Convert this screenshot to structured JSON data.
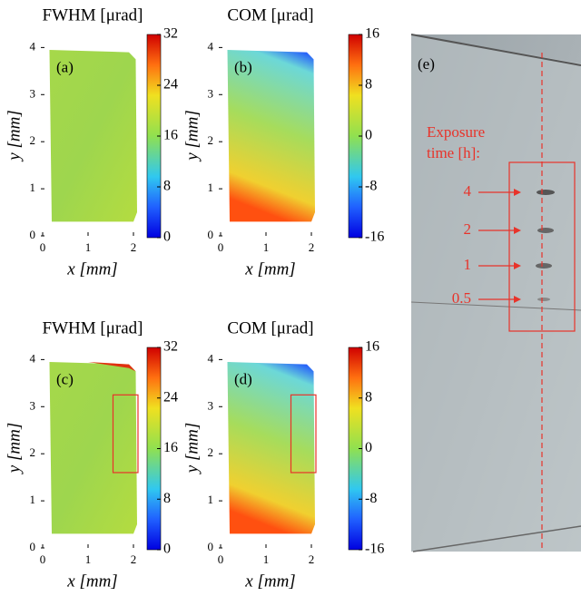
{
  "panels": [
    {
      "label": "(a)",
      "title": "FWHM [μrad]",
      "x_label": "x [mm]",
      "y_label": "y [mm]",
      "xlim": [
        0,
        2.2
      ],
      "ylim": [
        0,
        4.2
      ],
      "xticks": [
        0,
        1,
        2
      ],
      "yticks": [
        0,
        1,
        2,
        3,
        4
      ],
      "colorbar": {
        "lim": [
          0,
          32
        ],
        "ticks": [
          0,
          8,
          16,
          24,
          32
        ]
      },
      "map": "fwhm"
    },
    {
      "label": "(b)",
      "title": "COM [μrad]",
      "x_label": "x [mm]",
      "y_label": "y [mm]",
      "xlim": [
        0,
        2.2
      ],
      "ylim": [
        0,
        4.2
      ],
      "xticks": [
        0,
        1,
        2
      ],
      "yticks": [
        0,
        1,
        2,
        3,
        4
      ],
      "colorbar": {
        "lim": [
          -16,
          16
        ],
        "ticks": [
          -16,
          -8,
          0,
          8,
          16
        ]
      },
      "map": "com"
    },
    {
      "label": "(c)",
      "title": "FWHM [μrad]",
      "x_label": "x [mm]",
      "y_label": "y [mm]",
      "xlim": [
        0,
        2.2
      ],
      "ylim": [
        0,
        4.2
      ],
      "xticks": [
        0,
        1,
        2
      ],
      "yticks": [
        0,
        1,
        2,
        3,
        4
      ],
      "colorbar": {
        "lim": [
          0,
          32
        ],
        "ticks": [
          0,
          8,
          16,
          24,
          32
        ]
      },
      "map": "fwhm"
    },
    {
      "label": "(d)",
      "title": "COM [μrad]",
      "x_label": "x [mm]",
      "y_label": "y [mm]",
      "xlim": [
        0,
        2.2
      ],
      "ylim": [
        0,
        4.2
      ],
      "xticks": [
        0,
        1,
        2
      ],
      "yticks": [
        0,
        1,
        2,
        3,
        4
      ],
      "colorbar": {
        "lim": [
          -16,
          16
        ],
        "ticks": [
          -16,
          -8,
          0,
          8,
          16
        ]
      },
      "map": "com"
    }
  ],
  "photo": {
    "label": "(e)",
    "caption_lines": [
      "Exposure",
      "time [h]:"
    ],
    "exposure_labels": [
      "4",
      "2",
      "1",
      "0.5"
    ]
  }
}
